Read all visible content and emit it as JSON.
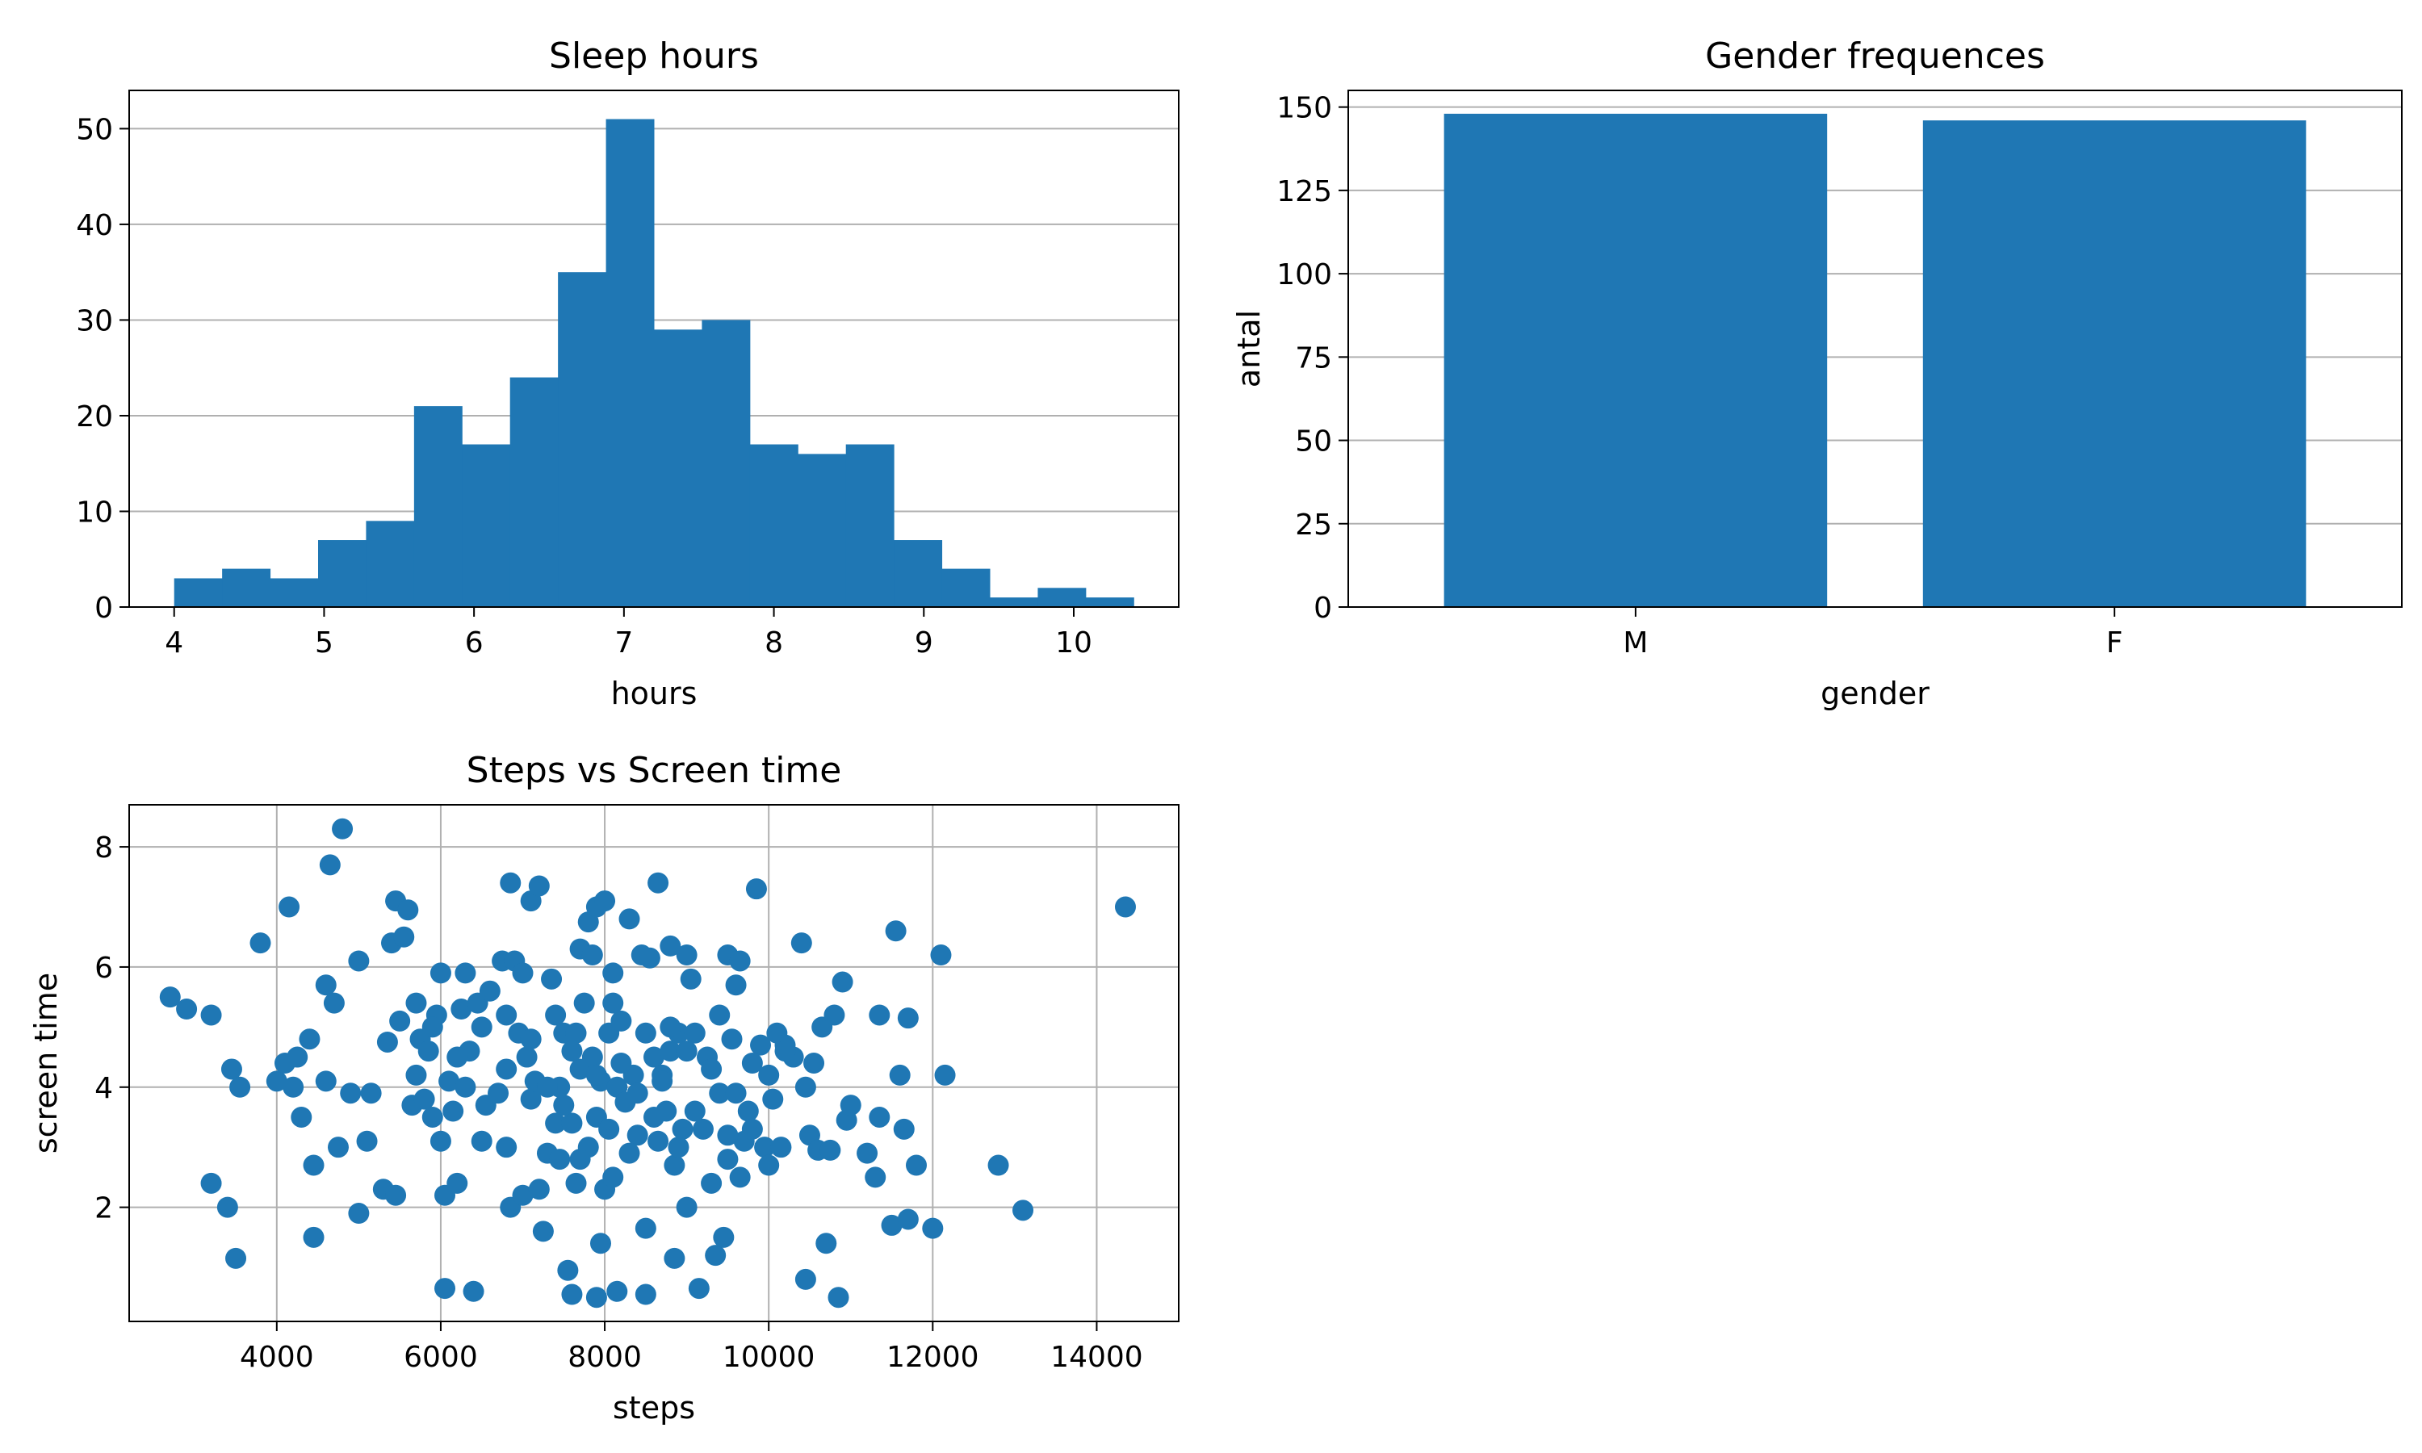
{
  "chart_data": [
    {
      "type": "bar",
      "subtype": "histogram",
      "title": "Sleep hours",
      "xlabel": "hours",
      "ylabel": "",
      "xlim": [
        3.7,
        10.7
      ],
      "ylim": [
        0,
        54
      ],
      "xticks": [
        4,
        5,
        6,
        7,
        8,
        9,
        10
      ],
      "yticks": [
        0,
        10,
        20,
        30,
        40,
        50
      ],
      "grid": "horizontal",
      "color": "#1f77b4",
      "bin_start": 4.0,
      "bin_width": 0.32,
      "values": [
        3,
        4,
        3,
        7,
        9,
        21,
        17,
        24,
        35,
        51,
        29,
        30,
        17,
        16,
        17,
        7,
        4,
        1,
        2,
        1
      ]
    },
    {
      "type": "bar",
      "title": "Gender frequences",
      "xlabel": "gender",
      "ylabel": "antal",
      "categories": [
        "M",
        "F"
      ],
      "values": [
        148,
        146
      ],
      "ylim": [
        0,
        155
      ],
      "yticks": [
        0,
        25,
        50,
        75,
        100,
        125,
        150
      ],
      "grid": "horizontal",
      "color": "#1f77b4"
    },
    {
      "type": "scatter",
      "title": "Steps vs Screen time",
      "xlabel": "steps",
      "ylabel": "screen time",
      "xlim": [
        2200,
        15000
      ],
      "ylim": [
        0.1,
        8.7
      ],
      "xticks": [
        4000,
        6000,
        8000,
        10000,
        12000,
        14000
      ],
      "yticks": [
        2,
        4,
        6,
        8
      ],
      "grid": "both",
      "color": "#1f77b4",
      "points": [
        [
          2700,
          5.5
        ],
        [
          2900,
          5.3
        ],
        [
          3200,
          5.2
        ],
        [
          3200,
          2.4
        ],
        [
          3400,
          2.0
        ],
        [
          3450,
          4.3
        ],
        [
          3500,
          1.15
        ],
        [
          3550,
          4.0
        ],
        [
          3800,
          6.4
        ],
        [
          4000,
          4.1
        ],
        [
          4100,
          4.4
        ],
        [
          4150,
          7.0
        ],
        [
          4200,
          4.0
        ],
        [
          4250,
          4.5
        ],
        [
          4300,
          3.5
        ],
        [
          4400,
          4.8
        ],
        [
          4450,
          2.7
        ],
        [
          4450,
          1.5
        ],
        [
          4600,
          4.1
        ],
        [
          4600,
          5.7
        ],
        [
          4650,
          7.7
        ],
        [
          4700,
          5.4
        ],
        [
          4750,
          3.0
        ],
        [
          4800,
          8.3
        ],
        [
          4900,
          3.9
        ],
        [
          5000,
          6.1
        ],
        [
          5000,
          1.9
        ],
        [
          5100,
          3.1
        ],
        [
          5150,
          3.9
        ],
        [
          5300,
          2.3
        ],
        [
          5350,
          4.75
        ],
        [
          5400,
          6.4
        ],
        [
          5450,
          7.1
        ],
        [
          5450,
          2.2
        ],
        [
          5500,
          5.1
        ],
        [
          5550,
          6.5
        ],
        [
          5600,
          6.95
        ],
        [
          5650,
          3.7
        ],
        [
          5700,
          5.4
        ],
        [
          5750,
          4.8
        ],
        [
          5800,
          3.8
        ],
        [
          5850,
          4.6
        ],
        [
          5900,
          3.5
        ],
        [
          5950,
          5.2
        ],
        [
          6000,
          5.9
        ],
        [
          6000,
          3.1
        ],
        [
          6050,
          2.2
        ],
        [
          6050,
          0.65
        ],
        [
          6100,
          4.1
        ],
        [
          6150,
          3.6
        ],
        [
          6200,
          2.4
        ],
        [
          6250,
          5.3
        ],
        [
          6300,
          5.9
        ],
        [
          6350,
          4.6
        ],
        [
          6400,
          0.6
        ],
        [
          6450,
          5.4
        ],
        [
          6500,
          3.1
        ],
        [
          6550,
          3.7
        ],
        [
          6600,
          5.6
        ],
        [
          6700,
          3.9
        ],
        [
          6750,
          6.1
        ],
        [
          6800,
          5.2
        ],
        [
          6850,
          2.0
        ],
        [
          6850,
          7.4
        ],
        [
          6900,
          6.1
        ],
        [
          6950,
          4.9
        ],
        [
          7000,
          2.2
        ],
        [
          7000,
          5.9
        ],
        [
          7050,
          4.5
        ],
        [
          7100,
          7.1
        ],
        [
          7100,
          3.8
        ],
        [
          7150,
          4.1
        ],
        [
          7200,
          2.3
        ],
        [
          7200,
          7.35
        ],
        [
          7250,
          1.6
        ],
        [
          7300,
          2.9
        ],
        [
          7350,
          5.8
        ],
        [
          7400,
          3.4
        ],
        [
          7450,
          4.0
        ],
        [
          7450,
          2.8
        ],
        [
          7500,
          4.9
        ],
        [
          7550,
          0.95
        ],
        [
          7600,
          3.4
        ],
        [
          7600,
          0.55
        ],
        [
          7650,
          4.9
        ],
        [
          7650,
          2.4
        ],
        [
          7700,
          4.3
        ],
        [
          7700,
          6.3
        ],
        [
          7750,
          5.4
        ],
        [
          7800,
          6.75
        ],
        [
          7800,
          3.0
        ],
        [
          7850,
          6.2
        ],
        [
          7850,
          4.5
        ],
        [
          7900,
          7.0
        ],
        [
          7900,
          3.5
        ],
        [
          7900,
          0.5
        ],
        [
          7950,
          4.1
        ],
        [
          7950,
          1.4
        ],
        [
          8000,
          7.1
        ],
        [
          8000,
          2.3
        ],
        [
          8050,
          4.9
        ],
        [
          8050,
          3.3
        ],
        [
          8100,
          5.9
        ],
        [
          8100,
          2.5
        ],
        [
          8150,
          4.0
        ],
        [
          8150,
          0.6
        ],
        [
          8200,
          5.1
        ],
        [
          8250,
          3.75
        ],
        [
          8300,
          6.8
        ],
        [
          8350,
          4.2
        ],
        [
          8400,
          3.2
        ],
        [
          8450,
          6.2
        ],
        [
          8500,
          4.9
        ],
        [
          8500,
          1.65
        ],
        [
          8500,
          0.55
        ],
        [
          8550,
          6.15
        ],
        [
          8600,
          4.5
        ],
        [
          8650,
          3.1
        ],
        [
          8650,
          7.4
        ],
        [
          8700,
          4.2
        ],
        [
          8750,
          3.6
        ],
        [
          8800,
          6.35
        ],
        [
          8800,
          4.6
        ],
        [
          8850,
          2.7
        ],
        [
          8850,
          1.15
        ],
        [
          8900,
          4.9
        ],
        [
          8950,
          3.3
        ],
        [
          9000,
          6.2
        ],
        [
          9000,
          2.0
        ],
        [
          9050,
          5.8
        ],
        [
          9100,
          4.9
        ],
        [
          9150,
          0.65
        ],
        [
          9200,
          3.3
        ],
        [
          9250,
          4.5
        ],
        [
          9300,
          2.4
        ],
        [
          9350,
          1.2
        ],
        [
          9400,
          3.9
        ],
        [
          9450,
          1.5
        ],
        [
          9500,
          6.2
        ],
        [
          9500,
          2.8
        ],
        [
          9550,
          4.8
        ],
        [
          9600,
          5.7
        ],
        [
          9600,
          3.9
        ],
        [
          9650,
          6.1
        ],
        [
          9650,
          2.5
        ],
        [
          9700,
          3.1
        ],
        [
          9750,
          3.6
        ],
        [
          9800,
          3.3
        ],
        [
          9850,
          7.3
        ],
        [
          9900,
          4.7
        ],
        [
          9950,
          3.0
        ],
        [
          10000,
          4.2
        ],
        [
          10050,
          3.8
        ],
        [
          10100,
          4.9
        ],
        [
          10150,
          3.0
        ],
        [
          10200,
          4.7
        ],
        [
          10300,
          4.5
        ],
        [
          10400,
          6.4
        ],
        [
          10450,
          4.0
        ],
        [
          10450,
          0.8
        ],
        [
          10500,
          3.2
        ],
        [
          10550,
          4.4
        ],
        [
          10600,
          2.95
        ],
        [
          10650,
          5.0
        ],
        [
          10700,
          1.4
        ],
        [
          10750,
          2.95
        ],
        [
          10800,
          5.2
        ],
        [
          10850,
          0.5
        ],
        [
          10900,
          5.75
        ],
        [
          10950,
          3.45
        ],
        [
          11000,
          3.7
        ],
        [
          11200,
          2.9
        ],
        [
          11300,
          2.5
        ],
        [
          11350,
          3.5
        ],
        [
          11350,
          5.2
        ],
        [
          11500,
          1.7
        ],
        [
          11550,
          6.6
        ],
        [
          11600,
          4.2
        ],
        [
          11650,
          3.3
        ],
        [
          11700,
          1.8
        ],
        [
          11700,
          5.15
        ],
        [
          11800,
          2.7
        ],
        [
          12000,
          1.65
        ],
        [
          12100,
          6.2
        ],
        [
          12150,
          4.2
        ],
        [
          12800,
          2.7
        ],
        [
          13100,
          1.95
        ],
        [
          14350,
          7.0
        ],
        [
          5900,
          5.0
        ],
        [
          6200,
          4.5
        ],
        [
          6500,
          5.0
        ],
        [
          6800,
          4.3
        ],
        [
          7100,
          4.8
        ],
        [
          7300,
          4.0
        ],
        [
          7600,
          4.6
        ],
        [
          7900,
          4.2
        ],
        [
          8200,
          4.4
        ],
        [
          8400,
          3.9
        ],
        [
          8700,
          4.1
        ],
        [
          9000,
          4.6
        ],
        [
          9300,
          4.3
        ],
        [
          8600,
          3.5
        ],
        [
          7500,
          3.7
        ],
        [
          8900,
          3.0
        ],
        [
          9100,
          3.6
        ],
        [
          8300,
          2.9
        ],
        [
          7700,
          2.8
        ],
        [
          9800,
          4.4
        ],
        [
          10200,
          4.6
        ],
        [
          6800,
          3.0
        ],
        [
          7400,
          5.2
        ],
        [
          8100,
          5.4
        ],
        [
          8800,
          5.0
        ],
        [
          9400,
          5.2
        ],
        [
          6300,
          4.0
        ],
        [
          5700,
          4.2
        ],
        [
          10000,
          2.7
        ],
        [
          9500,
          3.2
        ]
      ]
    }
  ]
}
